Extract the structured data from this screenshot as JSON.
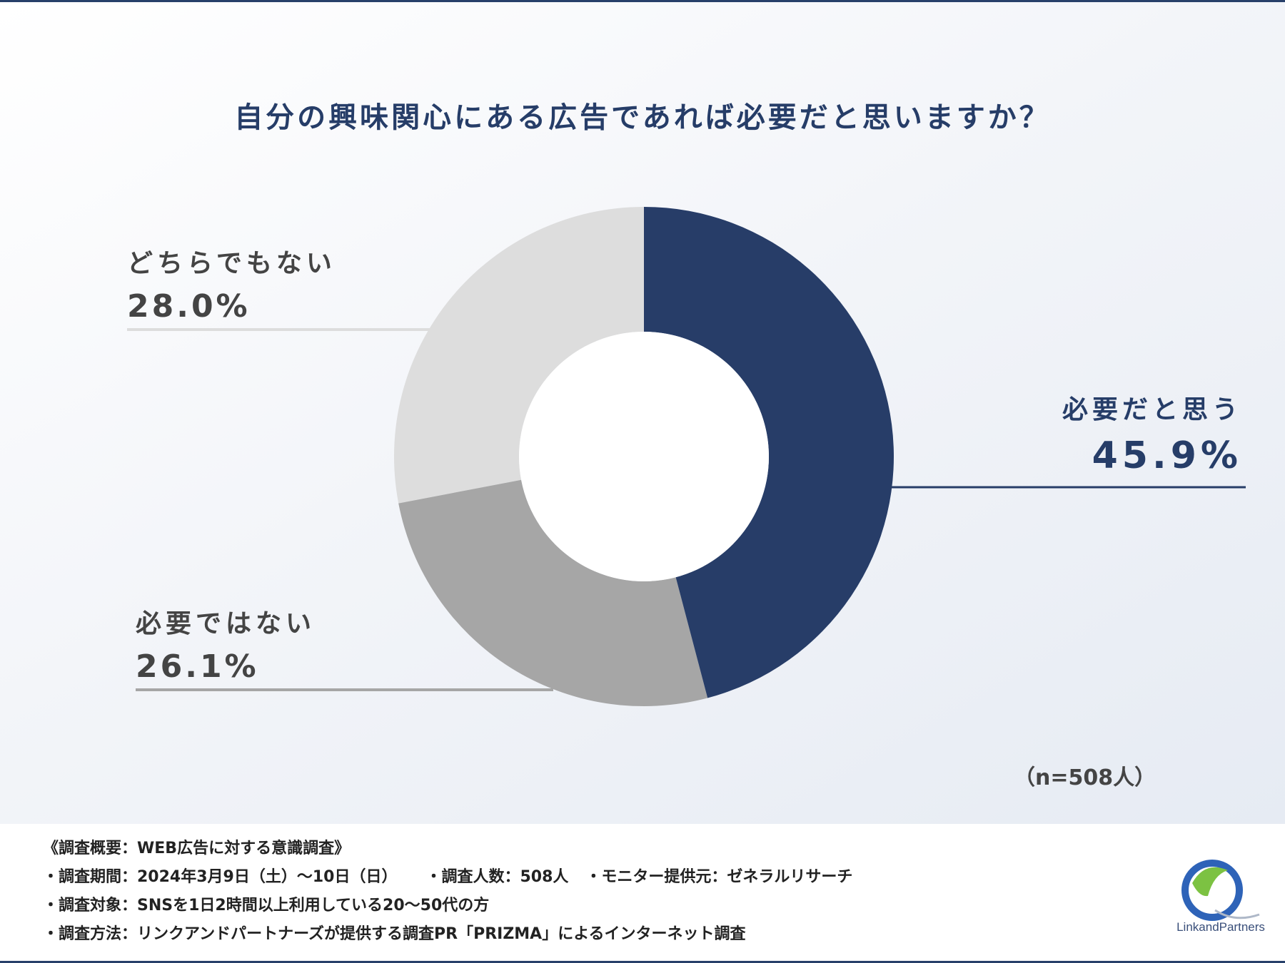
{
  "title": "自分の興味関心にある広告であれば必要だと思いますか？",
  "chart_data": {
    "type": "pie",
    "variant": "donut",
    "categories": [
      "必要だと思う",
      "必要ではない",
      "どちらでもない"
    ],
    "values": [
      45.9,
      26.1,
      28.0
    ],
    "value_labels": [
      "45.9%",
      "26.1%",
      "28.0%"
    ],
    "colors": [
      "#273d68",
      "#a6a6a6",
      "#dddddd"
    ],
    "title": "自分の興味関心にある広告であれば必要だと思いますか？"
  },
  "sample_size": "（n=508人）",
  "footer": {
    "summary": "《調査概要：WEB広告に対する意識調査》",
    "period": "・調査期間：2024年3月9日（土）〜10日（日）",
    "count": "・調査人数：508人",
    "provider": "・モニター提供元：ゼネラルリサーチ",
    "target": "・調査対象：SNSを1日2時間以上利用している20〜50代の方",
    "method": "・調査方法：リンクアンドパートナーズが提供する調査PR「PRIZMA」によるインターネット調査"
  },
  "logo": {
    "text": "LinkandPartners",
    "colors": [
      "#2e63b8",
      "#7cc242"
    ]
  }
}
